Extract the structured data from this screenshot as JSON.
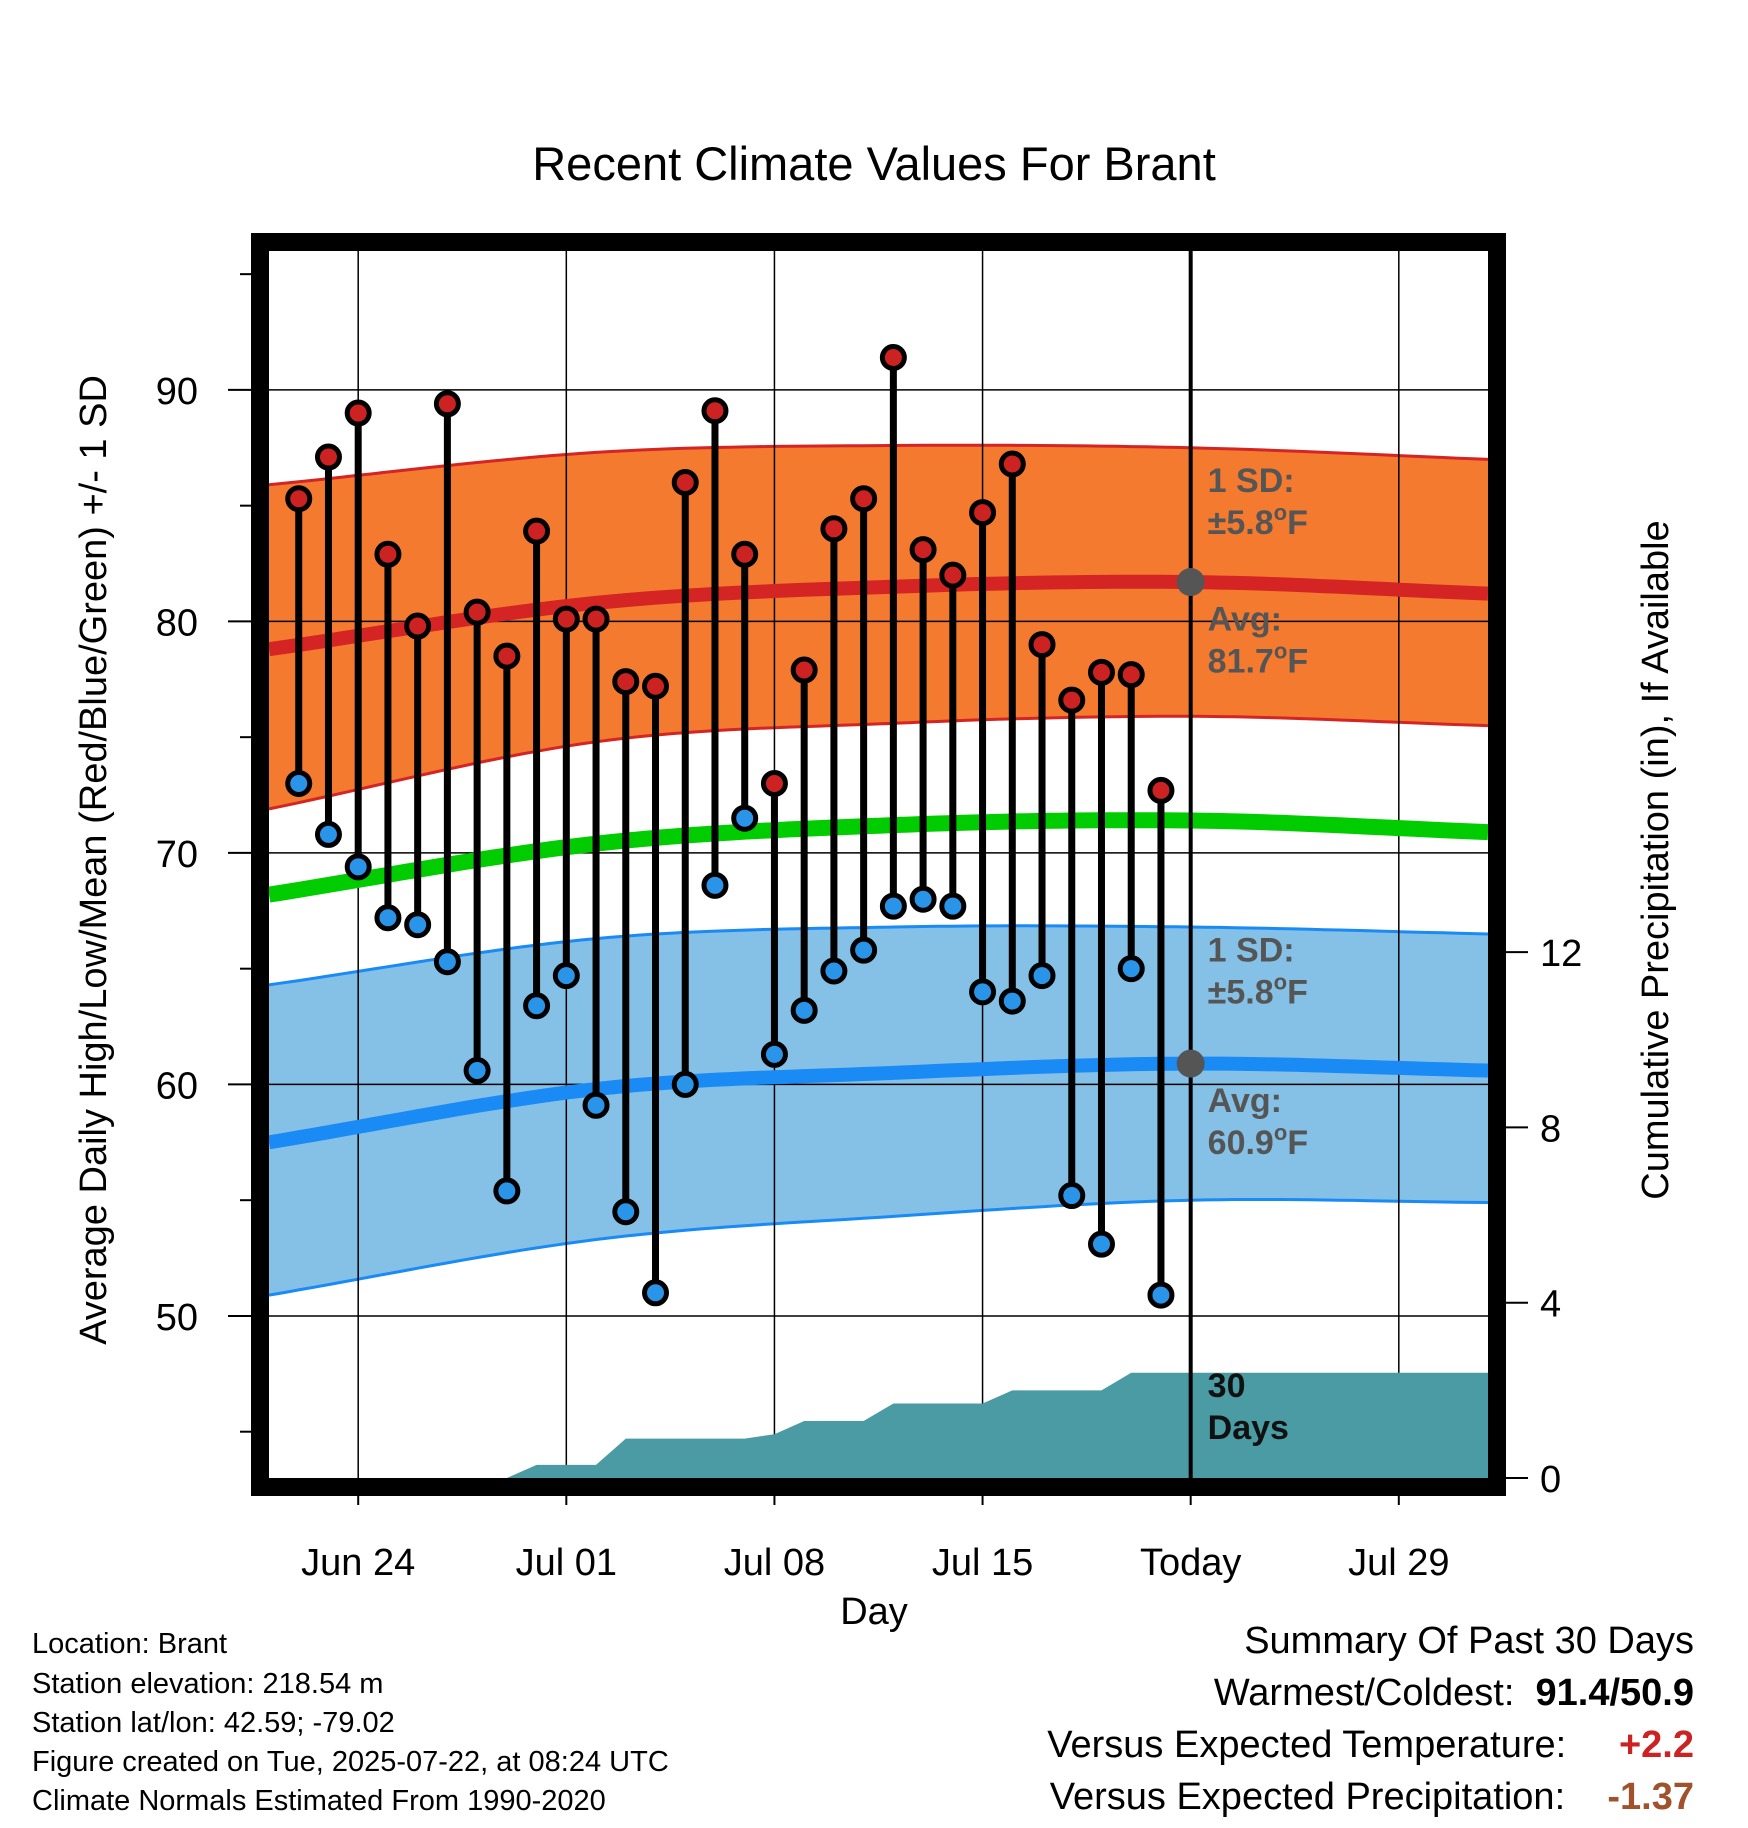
{
  "chart_data": {
    "type": "line",
    "title": "Recent Climate Values For Brant",
    "xlabel": "Day",
    "ylabel": "Average Daily High/Low/Mean (Red/Blue/Green) +/- 1 SD",
    "y2label": "Cumulative Precipitation (in), If Available",
    "x_ticks": [
      "Jun 24",
      "Jul 01",
      "Jul 08",
      "Jul 15",
      "Today",
      "Jul 29"
    ],
    "y_ticks": [
      50,
      60,
      70,
      80,
      90
    ],
    "y2_ticks": [
      0,
      4,
      8,
      12
    ],
    "x_range_days": [
      -31,
      10
    ],
    "ylim": [
      43,
      96
    ],
    "y2lim": [
      0,
      28
    ],
    "grid": true,
    "daily": {
      "x_days": [
        -30,
        -29,
        -28,
        -27,
        -26,
        -25,
        -24,
        -23,
        -22,
        -21,
        -20,
        -19,
        -18,
        -17,
        -16,
        -15,
        -14,
        -13,
        -12,
        -11,
        -10,
        -9,
        -8,
        -7,
        -6,
        -5,
        -4,
        -3,
        -2,
        -1
      ],
      "high": [
        85.3,
        87.1,
        89.0,
        82.9,
        79.8,
        89.4,
        80.4,
        78.5,
        83.9,
        80.1,
        80.1,
        77.4,
        77.2,
        86.0,
        89.1,
        82.9,
        73.0,
        77.9,
        84.0,
        85.3,
        91.4,
        83.1,
        82.0,
        84.7,
        86.8,
        79.0,
        76.6,
        77.8,
        77.7,
        72.7
      ],
      "low": [
        73.0,
        70.8,
        69.4,
        67.2,
        66.9,
        65.3,
        60.6,
        55.4,
        63.4,
        64.7,
        59.1,
        54.5,
        51.0,
        60.0,
        68.6,
        71.5,
        61.3,
        63.2,
        64.9,
        65.8,
        67.7,
        68.0,
        67.7,
        64.0,
        63.6,
        64.7,
        55.2,
        53.1,
        65.0,
        50.9
      ]
    },
    "normals": {
      "x_days": [
        -31,
        -20,
        -10,
        0,
        10
      ],
      "high_avg": [
        78.8,
        80.8,
        81.5,
        81.7,
        81.2
      ],
      "high_upper": [
        85.9,
        87.3,
        87.6,
        87.5,
        87.0
      ],
      "high_lower": [
        71.9,
        74.8,
        75.6,
        75.9,
        75.5
      ],
      "mean_avg": [
        68.2,
        70.4,
        71.2,
        71.4,
        70.9
      ],
      "low_avg": [
        57.5,
        59.8,
        60.5,
        60.9,
        60.6
      ],
      "low_upper": [
        64.3,
        66.3,
        66.8,
        66.8,
        66.5
      ],
      "low_lower": [
        50.9,
        53.3,
        54.3,
        55.0,
        54.9
      ]
    },
    "precip": {
      "x_days": [
        -23,
        -22,
        -21,
        -20,
        -19,
        -18,
        -15,
        -14,
        -13,
        -12,
        -11,
        -10,
        -9,
        -8,
        -7,
        -6,
        -5,
        -4,
        -3,
        -2,
        -1,
        0,
        10
      ],
      "cumulative": [
        0,
        0.3,
        0.3,
        0.3,
        0.9,
        0.9,
        0.9,
        1.0,
        1.3,
        1.3,
        1.3,
        1.7,
        1.7,
        1.7,
        1.7,
        2.0,
        2.0,
        2.0,
        2.0,
        2.4,
        2.4,
        2.4,
        2.4
      ]
    },
    "annotations": {
      "high_sd_line1": "1 SD:",
      "high_sd_line2": "±5.8",
      "high_avg_line1": "Avg:",
      "high_avg_line2": "81.7",
      "low_sd_line1": "1 SD:",
      "low_sd_line2": "±5.8",
      "low_avg_line1": "Avg:",
      "low_avg_line2": "60.9",
      "degree_unit": "o",
      "temp_unit": "F",
      "precip_label_line1": "30",
      "precip_label_line2": "Days"
    }
  },
  "colors": {
    "high_band": "#f47a30",
    "high_line": "#d42424",
    "low_band": "#85c0e6",
    "low_line": "#1a8af5",
    "mean_line": "#00cc00",
    "precip": "#4a9ba3",
    "high_dot": "#cc2222",
    "low_dot": "#2a95e8",
    "annotation": "#555555"
  },
  "meta": {
    "location": "Location: Brant",
    "elevation": "Station elevation: 218.54 m",
    "latlon": "Station lat/lon: 42.59; -79.02",
    "created": "Figure created on Tue, 2025-07-22, at 08:24 UTC",
    "normals": "Climate Normals Estimated From 1990-2020"
  },
  "summary": {
    "title": "Summary Of Past 30 Days",
    "warm_cold_label": "Warmest/Coldest:",
    "warm_cold_value": "91.4/50.9",
    "temp_label": "Versus Expected Temperature:",
    "temp_value": "+2.2",
    "temp_color": "#cc2222",
    "precip_label": "Versus Expected Precipitation:",
    "precip_value": "-1.37",
    "precip_color": "#a0522d"
  }
}
